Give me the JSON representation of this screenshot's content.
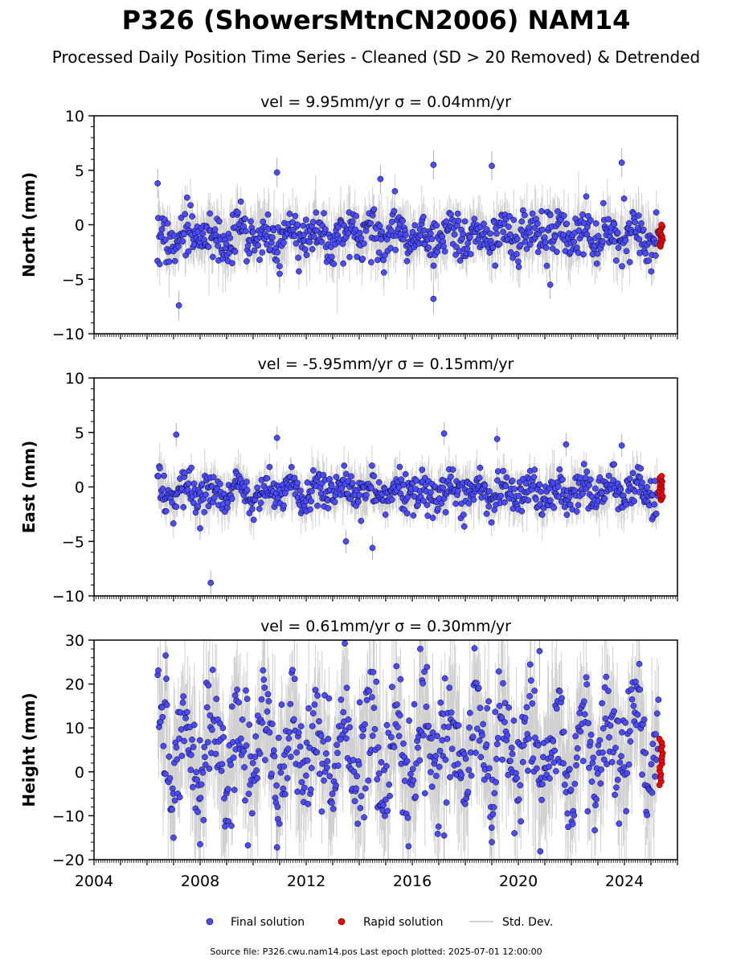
{
  "title": "P326 (ShowersMtnCN2006) NAM14",
  "subtitle": "Processed Daily Position Time Series - Cleaned (SD > 20 Removed) & Detrended",
  "footer": "Source file: P326.cwu.nam14.pos  Last epoch plotted: 2025-07-01 12:00:00",
  "legend": {
    "final": "Final solution",
    "rapid": "Rapid solution",
    "std": "Std. Dev."
  },
  "colors": {
    "final": "#4a4aff",
    "rapid": "#ff0000",
    "std": "#b0b0b0",
    "edge": "#000000"
  },
  "chart_data": [
    {
      "type": "scatter",
      "panel_title": "vel = 9.95mm/yr   σ = 0.04mm/yr",
      "ylabel": "North (mm)",
      "xlim": [
        2004,
        2026
      ],
      "ylim": [
        -10,
        10
      ],
      "yticks": [
        -10,
        -5,
        0,
        5,
        10
      ],
      "xticks": [
        2004,
        2008,
        2012,
        2016,
        2020,
        2024
      ],
      "show_xtick_labels": false,
      "final_series": {
        "x_range": [
          2006.4,
          2025.3
        ],
        "typical_range": [
          -3.5,
          1.5
        ],
        "center": -1.0,
        "seasonal_amplitude": 0.8,
        "outliers": [
          [
            2006.4,
            3.8
          ],
          [
            2007.2,
            -7.4
          ],
          [
            2010.9,
            4.8
          ],
          [
            2014.8,
            4.2
          ],
          [
            2016.8,
            5.5
          ],
          [
            2016.8,
            -6.8
          ],
          [
            2019.0,
            5.4
          ],
          [
            2023.9,
            5.7
          ],
          [
            2011.0,
            -4.5
          ],
          [
            2021.2,
            -5.5
          ]
        ]
      },
      "rapid_series": {
        "x_range": [
          2025.3,
          2025.45
        ],
        "y_range": [
          -2.0,
          0.0
        ]
      }
    },
    {
      "type": "scatter",
      "panel_title": "vel = -5.95mm/yr   σ = 0.15mm/yr",
      "ylabel": "East (mm)",
      "xlim": [
        2004,
        2026
      ],
      "ylim": [
        -10,
        10
      ],
      "yticks": [
        -10,
        -5,
        0,
        5,
        10
      ],
      "xticks": [
        2004,
        2008,
        2012,
        2016,
        2020,
        2024
      ],
      "show_xtick_labels": false,
      "final_series": {
        "x_range": [
          2006.4,
          2025.3
        ],
        "typical_range": [
          -2.5,
          1.5
        ],
        "center": -0.5,
        "seasonal_amplitude": 0.6,
        "outliers": [
          [
            2007.1,
            4.8
          ],
          [
            2008.4,
            -8.8
          ],
          [
            2010.9,
            4.5
          ],
          [
            2013.5,
            -5.0
          ],
          [
            2014.5,
            -5.6
          ],
          [
            2017.2,
            4.9
          ],
          [
            2019.2,
            4.4
          ],
          [
            2021.8,
            3.9
          ],
          [
            2023.9,
            3.8
          ],
          [
            2008.0,
            -3.8
          ]
        ]
      },
      "rapid_series": {
        "x_range": [
          2025.3,
          2025.45
        ],
        "y_range": [
          -1.2,
          1.0
        ]
      }
    },
    {
      "type": "scatter",
      "panel_title": "vel = 0.61mm/yr   σ = 0.30mm/yr",
      "ylabel": "Height (mm)",
      "xlim": [
        2004,
        2026
      ],
      "ylim": [
        -20,
        30
      ],
      "yticks": [
        -20,
        -10,
        0,
        10,
        20,
        30
      ],
      "xticks": [
        2004,
        2008,
        2012,
        2016,
        2020,
        2024
      ],
      "show_xtick_labels": true,
      "final_series": {
        "x_range": [
          2006.4,
          2025.3
        ],
        "typical_range": [
          -10,
          20
        ],
        "center": 5,
        "seasonal_amplitude": 8,
        "outliers": [
          [
            2006.7,
            26.5
          ],
          [
            2008.0,
            -16.5
          ],
          [
            2010.9,
            -17.2
          ],
          [
            2016.3,
            28.0
          ],
          [
            2020.8,
            27.5
          ],
          [
            2019.0,
            -16.0
          ],
          [
            2017.2,
            -14.5
          ],
          [
            2007.0,
            -15.0
          ]
        ]
      },
      "rapid_series": {
        "x_range": [
          2025.3,
          2025.45
        ],
        "y_range": [
          -3,
          7.5
        ]
      }
    }
  ]
}
